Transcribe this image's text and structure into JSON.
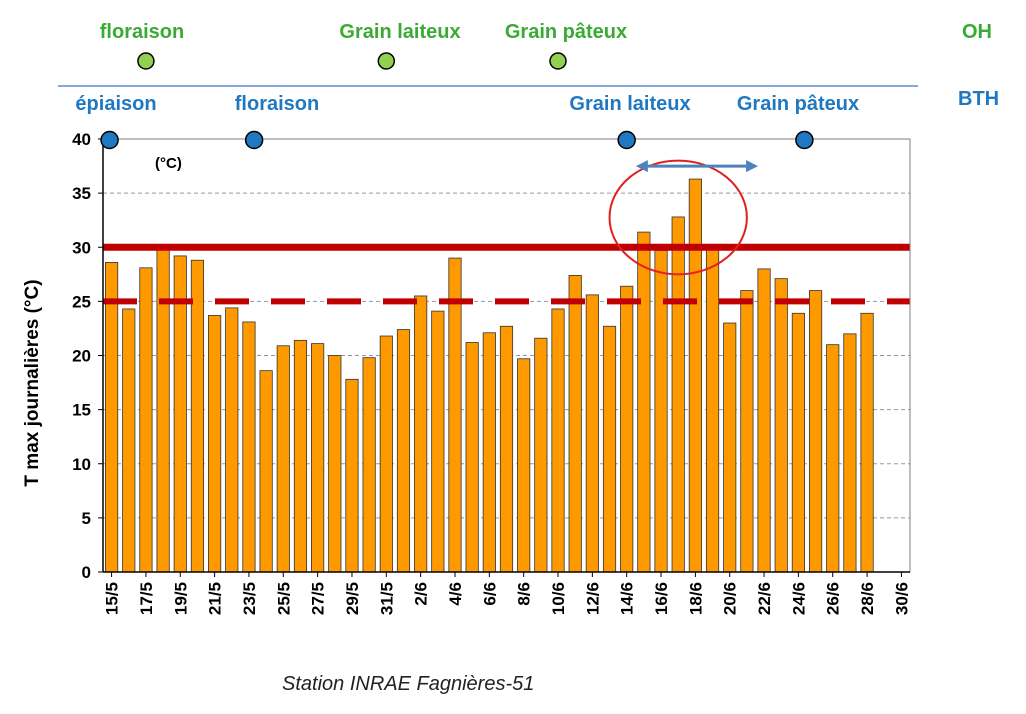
{
  "chart_data": {
    "type": "bar",
    "ylabel": "T max journalières (°C)",
    "unit_label": "(°C)",
    "caption": "Station INRAE Fagnières-51",
    "ylim": [
      0,
      40
    ],
    "yticks": [
      0,
      5,
      10,
      15,
      20,
      25,
      30,
      35,
      40
    ],
    "grid": "horizontal dashed",
    "categories": [
      "15/5",
      "16/5",
      "17/5",
      "18/5",
      "19/5",
      "20/5",
      "21/5",
      "22/5",
      "23/5",
      "24/5",
      "25/5",
      "26/5",
      "27/5",
      "28/5",
      "29/5",
      "30/5",
      "31/5",
      "1/6",
      "2/6",
      "3/6",
      "4/6",
      "5/6",
      "6/6",
      "7/6",
      "8/6",
      "9/6",
      "10/6",
      "11/6",
      "12/6",
      "13/6",
      "14/6",
      "15/6",
      "16/6",
      "17/6",
      "18/6",
      "19/6",
      "20/6",
      "21/6",
      "22/6",
      "23/6",
      "24/6",
      "25/6",
      "26/6",
      "27/6",
      "28/6",
      "29/6",
      "30/6"
    ],
    "xtick_labels": [
      "15/5",
      "17/5",
      "19/5",
      "21/5",
      "23/5",
      "25/5",
      "27/5",
      "29/5",
      "31/5",
      "2/6",
      "4/6",
      "6/6",
      "8/6",
      "10/6",
      "12/6",
      "14/6",
      "16/6",
      "18/6",
      "20/6",
      "22/6",
      "24/6",
      "26/6",
      "28/6",
      "30/6"
    ],
    "values": [
      28.6,
      24.3,
      28.1,
      30.0,
      29.2,
      28.8,
      23.7,
      24.4,
      23.1,
      18.6,
      20.9,
      21.4,
      21.1,
      20.0,
      17.8,
      19.8,
      21.8,
      22.4,
      25.5,
      24.1,
      29.0,
      21.2,
      22.1,
      22.7,
      19.7,
      21.6,
      24.3,
      27.4,
      25.6,
      22.7,
      26.4,
      31.4,
      29.7,
      32.8,
      36.3,
      29.8,
      23.0,
      26.0,
      28.0,
      27.1,
      23.9,
      26.0,
      21.0,
      22.0,
      23.9,
      null,
      null
    ],
    "bar_color": "#ff9900",
    "thresholds": [
      {
        "value": 30,
        "style": "solid",
        "color": "#c00000"
      },
      {
        "value": 25,
        "style": "dashed",
        "color": "#c00000"
      }
    ],
    "highlight": {
      "type": "ellipse",
      "from": "13/6",
      "to": "21/6",
      "ymin": 27.5,
      "ymax": 38.0,
      "color": "#e02020"
    },
    "arrow": {
      "from": "15/6",
      "to": "22/6",
      "y": 37.5,
      "color": "#4f81bd"
    },
    "stages": {
      "OH": {
        "label": "OH",
        "color": "#3aaa35",
        "items": [
          {
            "label": "floraison",
            "date": "17/5"
          },
          {
            "label": "Grain laiteux",
            "date": "31/5"
          },
          {
            "label": "Grain pâteux",
            "date": "10/6"
          }
        ]
      },
      "BTH": {
        "label": "BTH",
        "color": "#1f78c1",
        "items": [
          {
            "label": "épiaison",
            "date": "15/5"
          },
          {
            "label": "floraison",
            "date": "24/5"
          },
          {
            "label": "Grain laiteux",
            "date": "14/6"
          },
          {
            "label": "Grain pâteux",
            "date": "24/6"
          }
        ]
      }
    }
  }
}
